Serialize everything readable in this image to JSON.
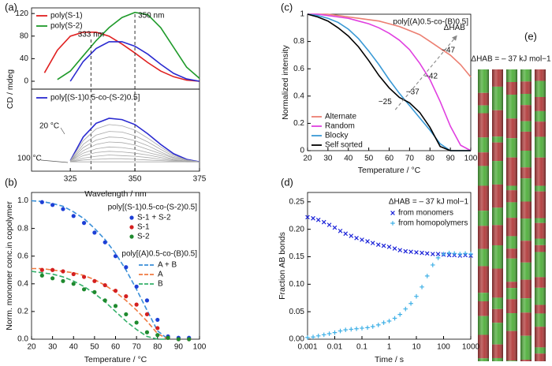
{
  "chart_data": [
    {
      "type": "line",
      "panel": "(a)",
      "ylabel": "CD / mdeg",
      "xlim": [
        310,
        375
      ],
      "ylim": [
        -14,
        130
      ],
      "yticks": [
        0,
        40,
        80,
        120
      ],
      "x": [
        310,
        315,
        320,
        325,
        330,
        335,
        340,
        345,
        350,
        355,
        360,
        365,
        370,
        375
      ],
      "series": [
        {
          "name": "poly(S-1)",
          "color": "#e02020",
          "values": [
            null,
            15,
            55,
            80,
            87,
            87,
            80,
            66,
            50,
            33,
            18,
            8,
            2,
            0
          ]
        },
        {
          "name": "poly(S-2)",
          "color": "#1f9a2a",
          "values": [
            null,
            null,
            3,
            18,
            45,
            72,
            95,
            113,
            122,
            118,
            95,
            60,
            25,
            5
          ]
        },
        {
          "color": "#2a2ad0",
          "values": [
            null,
            null,
            null,
            0,
            35,
            58,
            70,
            70,
            62,
            48,
            30,
            14,
            4,
            0
          ]
        }
      ],
      "vlines": [
        {
          "x": 333,
          "label": "333 nm"
        },
        {
          "x": 350,
          "label": "350 nm"
        }
      ]
    },
    {
      "type": "line",
      "xlabel": "Wavelength / nm",
      "xlim": [
        310,
        375
      ],
      "xticks": [
        325,
        350,
        375
      ],
      "ylim": [
        -15,
        117
      ],
      "x": [
        310,
        315,
        320,
        325,
        330,
        335,
        340,
        345,
        350,
        355,
        360,
        365,
        370,
        375
      ],
      "series": [
        {
          "name": "poly[(S-1)0.5-co-(S-2)0.5]",
          "color": "#2a2ad0",
          "values": [
            null,
            null,
            null,
            2,
            40,
            62,
            70,
            68,
            60,
            45,
            28,
            13,
            4,
            0
          ]
        },
        {
          "color": "#a8a8a8",
          "values": [
            null,
            null,
            null,
            2,
            34,
            53,
            60,
            58,
            51,
            38,
            24,
            11,
            3,
            0
          ]
        },
        {
          "color": "#a8a8a8",
          "values": [
            null,
            null,
            null,
            1,
            28,
            43,
            49,
            48,
            42,
            32,
            20,
            9,
            3,
            0
          ]
        },
        {
          "color": "#a8a8a8",
          "values": [
            null,
            null,
            null,
            1,
            23,
            35,
            40,
            39,
            34,
            26,
            16,
            7,
            2,
            0
          ]
        },
        {
          "color": "#a8a8a8",
          "values": [
            null,
            null,
            null,
            1,
            18,
            28,
            32,
            31,
            27,
            20,
            13,
            6,
            2,
            0
          ]
        },
        {
          "color": "#a8a8a8",
          "values": [
            null,
            null,
            null,
            1,
            14,
            21,
            24,
            23,
            20,
            15,
            10,
            4,
            1,
            0
          ]
        },
        {
          "color": "#a8a8a8",
          "values": [
            null,
            null,
            null,
            0,
            10,
            15,
            17,
            16,
            14,
            11,
            7,
            3,
            1,
            0
          ]
        },
        {
          "color": "#a8a8a8",
          "values": [
            null,
            null,
            null,
            0,
            6,
            9,
            11,
            10,
            9,
            7,
            4,
            2,
            1,
            0
          ]
        },
        {
          "color": "#a8a8a8",
          "values": [
            null,
            null,
            null,
            0,
            3,
            4,
            5,
            5,
            4,
            3,
            2,
            1,
            0,
            0
          ]
        },
        {
          "color": "#a8a8a8",
          "values": [
            null,
            null,
            null,
            0,
            0,
            0,
            0,
            0,
            0,
            0,
            0,
            0,
            0,
            0
          ]
        }
      ],
      "annotations": [
        "20 °C",
        "100 °C"
      ]
    },
    {
      "type": "scatter",
      "panel": "(b)",
      "xlabel": "Temperature / °C",
      "ylabel": "Norm. monomer conc.in copolymer",
      "xlim": [
        20,
        100
      ],
      "xticks": [
        20,
        30,
        40,
        50,
        60,
        70,
        80,
        90,
        100
      ],
      "ylim": [
        0,
        1.06
      ],
      "yticks": [
        {
          "value": 0,
          "label": "0.0"
        },
        0.2,
        0.4,
        0.6,
        0.8,
        {
          "value": 1,
          "label": "1.0"
        }
      ],
      "legend_title": "poly[(S-1)0.5-co-(S-2)0.5]",
      "x": [
        25,
        30,
        35,
        40,
        45,
        50,
        55,
        60,
        65,
        70,
        75,
        80,
        85,
        90,
        95
      ],
      "series": [
        {
          "name": "S-1 + S-2",
          "color": "#1d3fd6",
          "marker": "circle",
          "values": [
            0.99,
            0.97,
            0.94,
            0.89,
            0.84,
            0.77,
            0.7,
            0.6,
            0.52,
            0.38,
            0.28,
            0.14,
            0.02,
            0.01,
            0.01
          ]
        },
        {
          "name": "S-1",
          "color": "#d42020",
          "marker": "circle",
          "values": [
            0.5,
            0.5,
            0.49,
            0.47,
            0.45,
            0.42,
            0.39,
            0.35,
            0.31,
            0.25,
            0.18,
            0.08,
            0.01,
            0,
            0
          ]
        },
        {
          "name": "S-2",
          "color": "#1f8a2e",
          "marker": "circle",
          "values": [
            0.46,
            0.44,
            0.42,
            0.4,
            0.36,
            0.34,
            0.28,
            0.24,
            0.18,
            0.12,
            0.05,
            0.03,
            0.01,
            0,
            0
          ]
        }
      ],
      "fit_legend_title": "poly[(A)0.5-co-(B)0.5]",
      "fit_x": [
        20,
        25,
        30,
        35,
        40,
        45,
        50,
        55,
        60,
        65,
        70,
        75,
        80,
        85
      ],
      "fit_series": [
        {
          "name": "A + B",
          "color": "#3a8fd8",
          "linestyle": "dashed",
          "values": [
            1,
            0.995,
            0.98,
            0.96,
            0.92,
            0.87,
            0.8,
            0.72,
            0.62,
            0.5,
            0.36,
            0.21,
            0.06,
            0
          ]
        },
        {
          "name": "A",
          "color": "#f07a40",
          "linestyle": "dashed",
          "values": [
            0.51,
            0.51,
            0.5,
            0.49,
            0.48,
            0.46,
            0.43,
            0.39,
            0.34,
            0.28,
            0.21,
            0.13,
            0.04,
            0
          ]
        },
        {
          "name": "B",
          "color": "#35b06a",
          "linestyle": "dashed",
          "values": [
            0.49,
            0.48,
            0.47,
            0.45,
            0.42,
            0.38,
            0.33,
            0.27,
            0.2,
            0.13,
            0.07,
            0.02,
            0,
            0
          ]
        }
      ]
    },
    {
      "type": "line",
      "panel": "(c)",
      "title": "poly[(A)0.5-co-(B)0.5]",
      "xlabel": "Temperature / °C",
      "ylabel": "Normalized intensity",
      "xlim": [
        20,
        100
      ],
      "xticks": [
        20,
        30,
        40,
        50,
        60,
        70,
        80,
        90,
        100
      ],
      "ylim": [
        0,
        1
      ],
      "yticks": [
        0,
        0.2,
        0.4,
        0.6,
        0.8,
        1
      ],
      "x": [
        20,
        25,
        30,
        35,
        40,
        45,
        50,
        55,
        60,
        65,
        70,
        75,
        80,
        85,
        90,
        95,
        100
      ],
      "series": [
        {
          "name": "Alternate",
          "color": "#ec7f72",
          "values": [
            1,
            1,
            1,
            0.99,
            0.98,
            0.97,
            0.96,
            0.95,
            0.93,
            0.91,
            0.88,
            0.85,
            0.8,
            0.75,
            0.7,
            0.63,
            0.54
          ]
        },
        {
          "name": "Random",
          "color": "#e040e0",
          "values": [
            1,
            1,
            0.99,
            0.98,
            0.97,
            0.95,
            0.93,
            0.9,
            0.86,
            0.81,
            0.74,
            0.64,
            0.52,
            0.36,
            0.18,
            0.04,
            0
          ]
        },
        {
          "name": "Blocky",
          "color": "#3a9ad6",
          "values": [
            1,
            0.99,
            0.97,
            0.94,
            0.89,
            0.82,
            0.73,
            0.63,
            0.52,
            0.42,
            0.33,
            0.24,
            0.15,
            0.05,
            0,
            0,
            0
          ]
        },
        {
          "name": "Self sorted",
          "color": "#000000",
          "values": [
            1,
            0.98,
            0.95,
            0.9,
            0.84,
            0.76,
            0.66,
            0.55,
            0.46,
            0.39,
            0.35,
            0.28,
            0.17,
            0.03,
            0,
            0,
            0
          ]
        }
      ],
      "annotations": [
        "−25",
        "−37",
        "−42",
        "−47",
        "ΔHAB"
      ]
    },
    {
      "type": "scatter",
      "panel": "(d)",
      "xlabel": "Time / s",
      "ylabel": "Fraction AB bonds",
      "xscale": "log",
      "xlim": [
        0.001,
        1000
      ],
      "xticks": [
        0.001,
        0.01,
        0.1,
        1,
        10,
        100,
        1000
      ],
      "ylim": [
        0,
        0.267
      ],
      "yticks": [
        {
          "value": 0,
          "label": "0.00"
        },
        0.05,
        {
          "value": 0.1,
          "label": "0.10"
        },
        0.15,
        {
          "value": 0.2,
          "label": "0.20"
        },
        0.25
      ],
      "legend_title": "ΔHAB = – 37 kJ mol−1",
      "x": [
        0.001,
        0.0016,
        0.0025,
        0.004,
        0.0063,
        0.01,
        0.016,
        0.025,
        0.04,
        0.063,
        0.1,
        0.16,
        0.25,
        0.4,
        0.63,
        1,
        1.6,
        2.5,
        4,
        6.3,
        10,
        16,
        25,
        40,
        63,
        100,
        160,
        250,
        400,
        630,
        1000
      ],
      "series": [
        {
          "name": "from monomers",
          "color": "#1a22d8",
          "marker": "x",
          "values": [
            0.222,
            0.22,
            0.217,
            0.213,
            0.208,
            0.203,
            0.197,
            0.192,
            0.188,
            0.184,
            0.181,
            0.178,
            0.175,
            0.172,
            0.17,
            0.168,
            0.165,
            0.162,
            0.16,
            0.159,
            0.158,
            0.157,
            0.156,
            0.155,
            0.155,
            0.154,
            0.153,
            0.153,
            0.152,
            0.153,
            0.152
          ]
        },
        {
          "name": "from homopolymers",
          "color": "#3fb0e6",
          "marker": "+",
          "values": [
            0.003,
            0.004,
            0.006,
            0.008,
            0.01,
            0.012,
            0.015,
            0.017,
            0.018,
            0.019,
            0.02,
            0.021,
            0.023,
            0.026,
            0.03,
            0.033,
            0.038,
            0.045,
            0.055,
            0.065,
            0.078,
            0.095,
            0.115,
            0.135,
            0.148,
            0.155,
            0.157,
            0.156,
            0.155,
            0.156,
            0.155
          ]
        }
      ]
    }
  ],
  "panel_e": {
    "panel": "(e)",
    "title": "ΔHAB = – 37 kJ mol−1"
  }
}
